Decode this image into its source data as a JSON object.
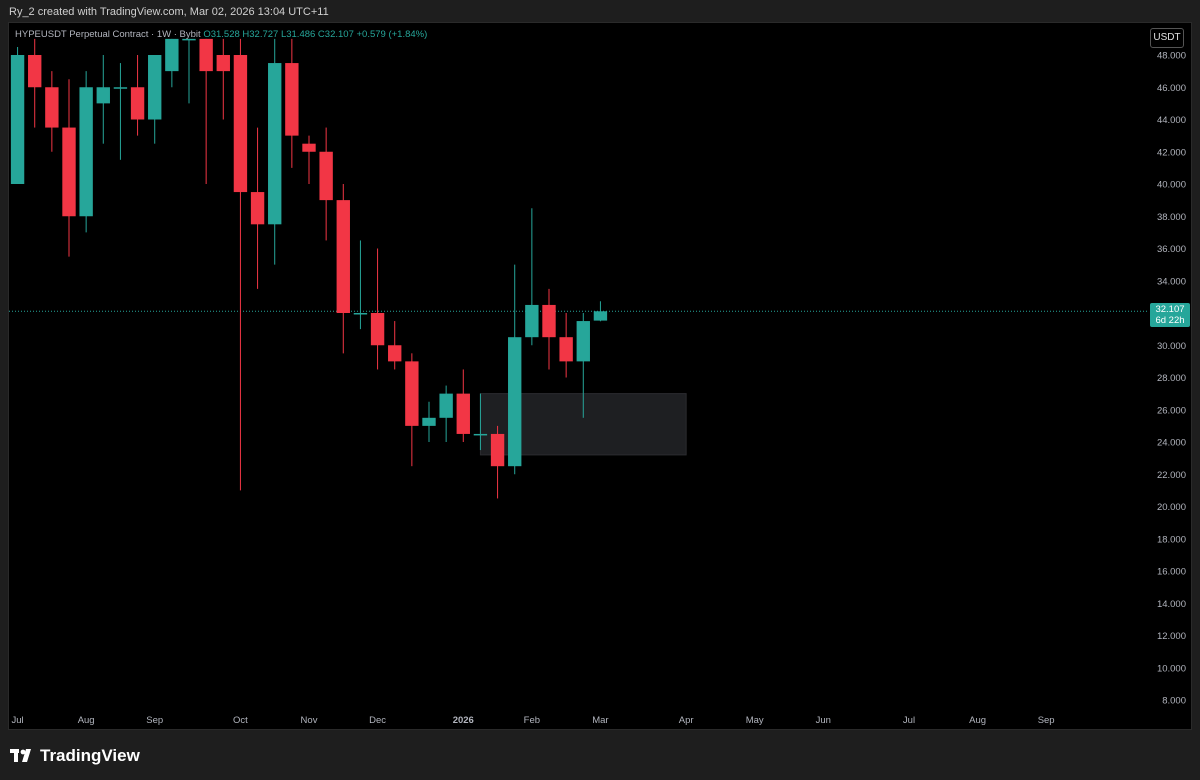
{
  "caption": "Ry_2 created with TradingView.com, Mar 02, 2026 13:04 UTC+11",
  "symbol_line": {
    "title": "HYPEUSDT Perpetual Contract · 1W · Bybit",
    "ohlc": "O31.528 H32.727 L31.486 C32.107 +0.579 (+1.84%)"
  },
  "currency_button": "USDT",
  "price_tag": {
    "price": "32.107",
    "countdown": "6d 22h"
  },
  "footer": {
    "brand": "TradingView"
  },
  "colors": {
    "up": "#26a69a",
    "down": "#f23645",
    "background": "#000000",
    "axis_text": "#b2b5be",
    "zone_fill": "#1e1f22"
  },
  "chart_data": {
    "type": "candlestick",
    "title": "HYPEUSDT Perpetual Contract · 1W · Bybit",
    "ylim": [
      7,
      49
    ],
    "y_ticks": [
      "48.000",
      "46.000",
      "44.000",
      "42.000",
      "40.000",
      "38.000",
      "36.000",
      "34.000",
      "32.000",
      "30.000",
      "28.000",
      "26.000",
      "24.000",
      "22.000",
      "20.000",
      "18.000",
      "16.000",
      "14.000",
      "12.000",
      "10.000",
      "8.000"
    ],
    "x_ticks": [
      {
        "label": "Jul",
        "week": 0
      },
      {
        "label": "Aug",
        "week": 4
      },
      {
        "label": "Sep",
        "week": 8
      },
      {
        "label": "Oct",
        "week": 13
      },
      {
        "label": "Nov",
        "week": 17
      },
      {
        "label": "Dec",
        "week": 21
      },
      {
        "label": "2026",
        "week": 26
      },
      {
        "label": "Feb",
        "week": 30
      },
      {
        "label": "Mar",
        "week": 34
      },
      {
        "label": "Apr",
        "week": 39
      },
      {
        "label": "May",
        "week": 43
      },
      {
        "label": "Jun",
        "week": 47
      },
      {
        "label": "Jul",
        "week": 52
      },
      {
        "label": "Aug",
        "week": 56
      },
      {
        "label": "Sep",
        "week": 60
      }
    ],
    "x_range_weeks": [
      -0.5,
      66.0
    ],
    "candles": [
      {
        "o": 40.0,
        "h": 48.5,
        "l": 40.0,
        "c": 48.0
      },
      {
        "o": 48.0,
        "h": 49.0,
        "l": 43.5,
        "c": 46.0
      },
      {
        "o": 46.0,
        "h": 47.0,
        "l": 42.0,
        "c": 43.5
      },
      {
        "o": 43.5,
        "h": 46.5,
        "l": 35.5,
        "c": 38.0
      },
      {
        "o": 38.0,
        "h": 47.0,
        "l": 37.0,
        "c": 46.0
      },
      {
        "o": 45.0,
        "h": 48.0,
        "l": 42.5,
        "c": 46.0
      },
      {
        "o": 46.0,
        "h": 47.5,
        "l": 41.5,
        "c": 46.0
      },
      {
        "o": 46.0,
        "h": 48.0,
        "l": 43.0,
        "c": 44.0
      },
      {
        "o": 44.0,
        "h": 48.0,
        "l": 42.5,
        "c": 48.0
      },
      {
        "o": 47.0,
        "h": 49.0,
        "l": 46.0,
        "c": 49.0
      },
      {
        "o": 49.0,
        "h": 49.0,
        "l": 45.0,
        "c": 49.0
      },
      {
        "o": 49.0,
        "h": 49.0,
        "l": 40.0,
        "c": 47.0
      },
      {
        "o": 48.0,
        "h": 49.0,
        "l": 44.0,
        "c": 47.0
      },
      {
        "o": 48.0,
        "h": 49.0,
        "l": 21.0,
        "c": 39.5
      },
      {
        "o": 39.5,
        "h": 43.5,
        "l": 33.5,
        "c": 37.5
      },
      {
        "o": 37.5,
        "h": 49.0,
        "l": 35.0,
        "c": 47.5
      },
      {
        "o": 47.5,
        "h": 49.0,
        "l": 41.0,
        "c": 43.0
      },
      {
        "o": 42.5,
        "h": 43.0,
        "l": 40.0,
        "c": 42.0
      },
      {
        "o": 42.0,
        "h": 43.5,
        "l": 36.5,
        "c": 39.0
      },
      {
        "o": 39.0,
        "h": 40.0,
        "l": 29.5,
        "c": 32.0
      },
      {
        "o": 32.0,
        "h": 36.5,
        "l": 31.0,
        "c": 32.0
      },
      {
        "o": 32.0,
        "h": 36.0,
        "l": 28.5,
        "c": 30.0
      },
      {
        "o": 30.0,
        "h": 31.5,
        "l": 28.5,
        "c": 29.0
      },
      {
        "o": 29.0,
        "h": 29.5,
        "l": 22.5,
        "c": 25.0
      },
      {
        "o": 25.0,
        "h": 26.5,
        "l": 24.0,
        "c": 25.5
      },
      {
        "o": 25.5,
        "h": 27.5,
        "l": 24.0,
        "c": 27.0
      },
      {
        "o": 27.0,
        "h": 28.5,
        "l": 24.0,
        "c": 24.5
      },
      {
        "o": 24.5,
        "h": 27.0,
        "l": 23.5,
        "c": 24.5
      },
      {
        "o": 24.5,
        "h": 25.0,
        "l": 20.5,
        "c": 22.5
      },
      {
        "o": 22.5,
        "h": 35.0,
        "l": 22.0,
        "c": 30.5
      },
      {
        "o": 30.5,
        "h": 38.5,
        "l": 30.0,
        "c": 32.5
      },
      {
        "o": 32.5,
        "h": 33.5,
        "l": 28.5,
        "c": 30.5
      },
      {
        "o": 30.5,
        "h": 32.0,
        "l": 28.0,
        "c": 29.0
      },
      {
        "o": 29.0,
        "h": 32.0,
        "l": 25.5,
        "c": 31.5
      },
      {
        "o": 31.528,
        "h": 32.727,
        "l": 31.486,
        "c": 32.107
      }
    ],
    "zone": {
      "week_start": 27.0,
      "week_end": 39.0,
      "low": 23.2,
      "high": 27.0
    },
    "last_price": 32.107,
    "grid": false,
    "price_line": "dotted"
  }
}
